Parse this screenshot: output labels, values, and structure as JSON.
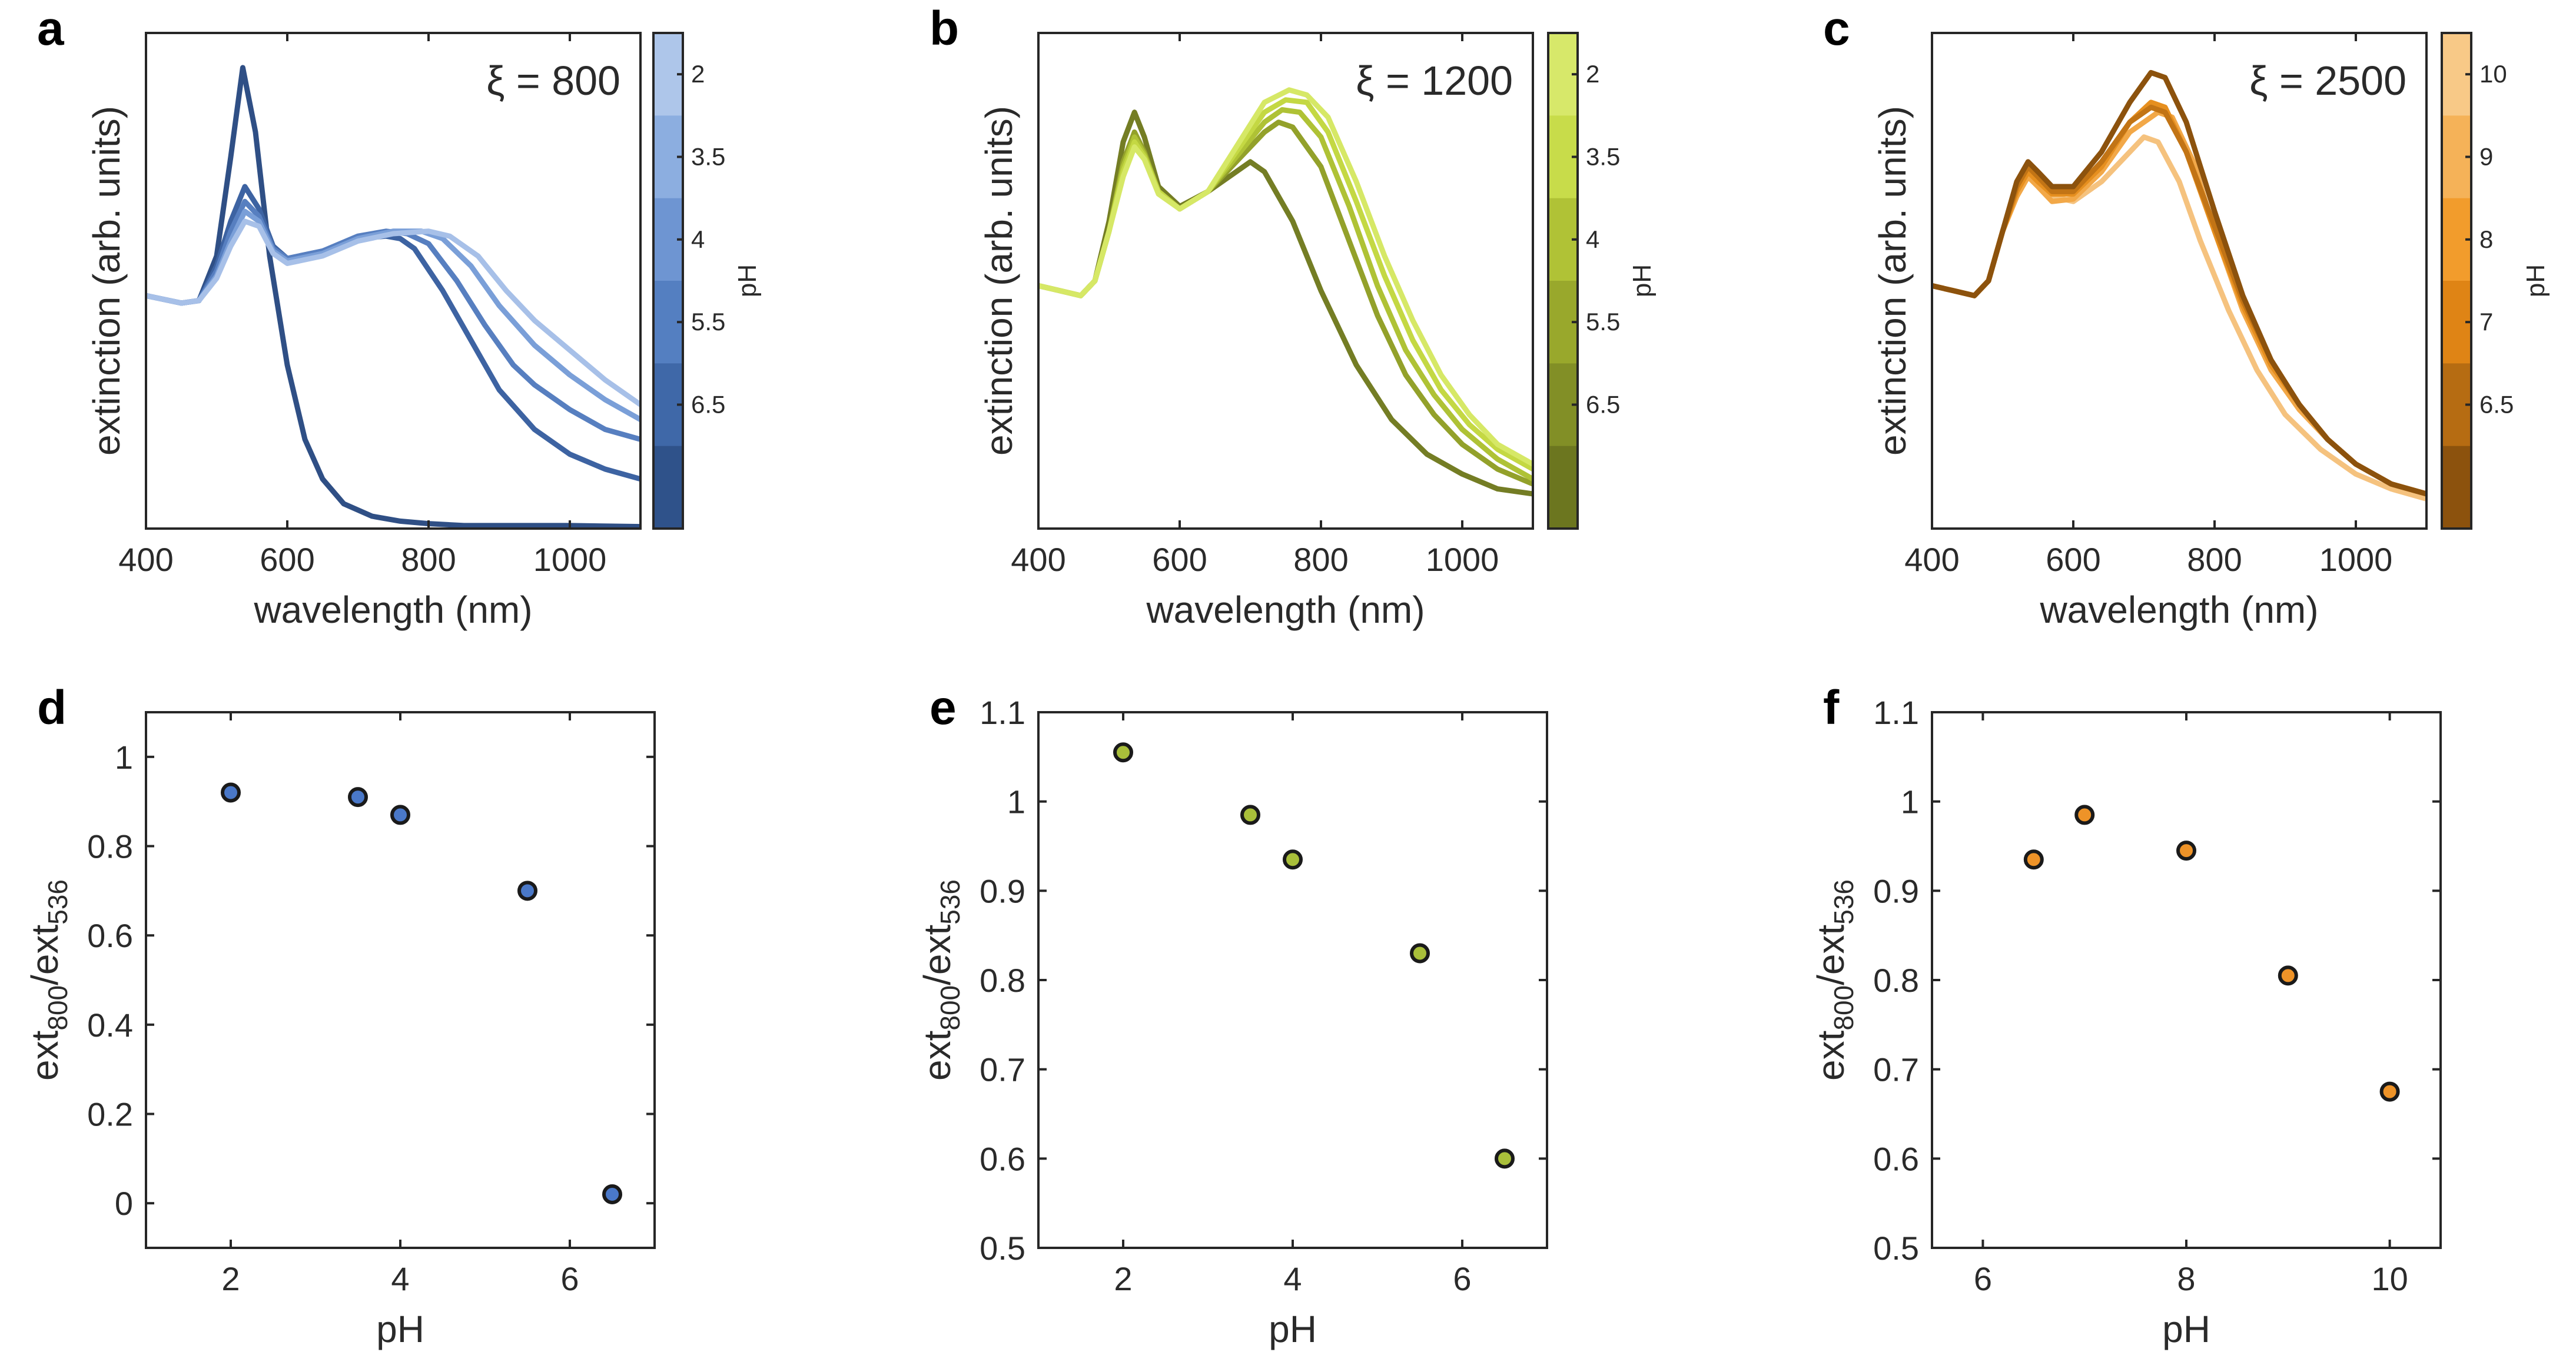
{
  "chart_data": [
    {
      "id": "a",
      "type": "line",
      "letter": "a",
      "annotation": "ξ = 800",
      "xlabel": "wavelength (nm)",
      "ylabel": "extinction (arb. units)",
      "xlim": [
        400,
        1100
      ],
      "ylim": [
        0,
        1
      ],
      "xticks": [
        400,
        600,
        800,
        1000
      ],
      "yticks": [],
      "colorbar": {
        "title": "pH",
        "ticks": [
          "2",
          "3.5",
          "4",
          "5.5",
          "6.5"
        ],
        "colors": [
          "#aec6ea",
          "#8caee0",
          "#6e95d2",
          "#547fc1",
          "#3f68a8",
          "#2f528a"
        ]
      },
      "series": [
        {
          "name": "6.5",
          "color": "#2f4f85",
          "x": [
            400,
            450,
            475,
            500,
            520,
            537,
            555,
            575,
            600,
            625,
            650,
            680,
            720,
            760,
            800,
            850,
            900,
            1000,
            1100
          ],
          "y": [
            0.47,
            0.455,
            0.46,
            0.55,
            0.75,
            0.93,
            0.8,
            0.55,
            0.33,
            0.18,
            0.1,
            0.05,
            0.025,
            0.015,
            0.01,
            0.006,
            0.006,
            0.006,
            0.004
          ]
        },
        {
          "name": "5.5",
          "color": "#3d63a2",
          "x": [
            400,
            450,
            475,
            500,
            520,
            540,
            560,
            580,
            600,
            650,
            700,
            740,
            760,
            780,
            820,
            860,
            900,
            950,
            1000,
            1050,
            1100
          ],
          "y": [
            0.47,
            0.455,
            0.46,
            0.53,
            0.62,
            0.69,
            0.645,
            0.57,
            0.545,
            0.56,
            0.585,
            0.59,
            0.585,
            0.565,
            0.48,
            0.38,
            0.28,
            0.2,
            0.15,
            0.12,
            0.1
          ]
        },
        {
          "name": "4",
          "color": "#577fc0",
          "x": [
            400,
            450,
            475,
            500,
            520,
            540,
            560,
            580,
            600,
            650,
            700,
            740,
            770,
            800,
            840,
            880,
            920,
            950,
            1000,
            1050,
            1100
          ],
          "y": [
            0.47,
            0.455,
            0.46,
            0.52,
            0.6,
            0.66,
            0.63,
            0.565,
            0.545,
            0.56,
            0.59,
            0.6,
            0.595,
            0.575,
            0.5,
            0.41,
            0.33,
            0.29,
            0.24,
            0.2,
            0.18
          ]
        },
        {
          "name": "3.5",
          "color": "#7a9fd8",
          "x": [
            400,
            450,
            475,
            500,
            520,
            540,
            560,
            580,
            600,
            650,
            700,
            750,
            790,
            820,
            860,
            900,
            950,
            1000,
            1050,
            1100
          ],
          "y": [
            0.47,
            0.455,
            0.46,
            0.51,
            0.58,
            0.64,
            0.62,
            0.56,
            0.54,
            0.555,
            0.585,
            0.6,
            0.6,
            0.585,
            0.53,
            0.45,
            0.37,
            0.31,
            0.26,
            0.22
          ]
        },
        {
          "name": "2",
          "color": "#a7c0e8",
          "x": [
            400,
            450,
            475,
            500,
            520,
            540,
            560,
            580,
            600,
            650,
            700,
            750,
            800,
            830,
            870,
            910,
            950,
            1000,
            1050,
            1100
          ],
          "y": [
            0.47,
            0.455,
            0.46,
            0.505,
            0.57,
            0.62,
            0.61,
            0.555,
            0.535,
            0.55,
            0.58,
            0.595,
            0.6,
            0.59,
            0.55,
            0.48,
            0.42,
            0.36,
            0.3,
            0.25
          ]
        }
      ]
    },
    {
      "id": "b",
      "type": "line",
      "letter": "b",
      "annotation": "ξ = 1200",
      "xlabel": "wavelength (nm)",
      "ylabel": "extinction (arb. units)",
      "xlim": [
        400,
        1100
      ],
      "ylim": [
        0,
        1
      ],
      "xticks": [
        400,
        600,
        800,
        1000
      ],
      "yticks": [],
      "colorbar": {
        "title": "pH",
        "ticks": [
          "2",
          "3.5",
          "4",
          "5.5",
          "6.5"
        ],
        "colors": [
          "#d7e86a",
          "#c8dc4a",
          "#b0c236",
          "#99a82c",
          "#828f26",
          "#6c761f"
        ]
      },
      "series": [
        {
          "name": "6.5",
          "color": "#747d24",
          "x": [
            400,
            430,
            460,
            480,
            500,
            520,
            536,
            550,
            570,
            600,
            640,
            680,
            700,
            720,
            760,
            800,
            850,
            900,
            950,
            1000,
            1050,
            1100
          ],
          "y": [
            0.49,
            0.48,
            0.47,
            0.5,
            0.62,
            0.78,
            0.84,
            0.79,
            0.69,
            0.65,
            0.68,
            0.72,
            0.74,
            0.72,
            0.62,
            0.48,
            0.33,
            0.22,
            0.15,
            0.11,
            0.08,
            0.07
          ]
        },
        {
          "name": "5.5",
          "color": "#93a12a",
          "x": [
            400,
            430,
            460,
            480,
            500,
            520,
            536,
            550,
            570,
            600,
            640,
            680,
            720,
            740,
            760,
            800,
            840,
            880,
            920,
            960,
            1000,
            1050,
            1100
          ],
          "y": [
            0.49,
            0.48,
            0.47,
            0.5,
            0.6,
            0.74,
            0.8,
            0.76,
            0.68,
            0.645,
            0.68,
            0.74,
            0.8,
            0.82,
            0.81,
            0.73,
            0.58,
            0.43,
            0.31,
            0.23,
            0.17,
            0.12,
            0.09
          ]
        },
        {
          "name": "4",
          "color": "#afc235",
          "x": [
            400,
            430,
            460,
            480,
            500,
            520,
            536,
            550,
            570,
            600,
            640,
            680,
            720,
            745,
            770,
            800,
            840,
            880,
            920,
            960,
            1000,
            1050,
            1100
          ],
          "y": [
            0.49,
            0.48,
            0.47,
            0.5,
            0.6,
            0.73,
            0.79,
            0.755,
            0.68,
            0.645,
            0.68,
            0.75,
            0.82,
            0.845,
            0.84,
            0.79,
            0.65,
            0.49,
            0.36,
            0.27,
            0.2,
            0.14,
            0.1
          ]
        },
        {
          "name": "3.5",
          "color": "#c4d843",
          "x": [
            400,
            430,
            460,
            480,
            500,
            520,
            536,
            550,
            570,
            600,
            640,
            680,
            720,
            750,
            780,
            810,
            850,
            890,
            930,
            970,
            1010,
            1050,
            1100
          ],
          "y": [
            0.49,
            0.48,
            0.47,
            0.5,
            0.6,
            0.72,
            0.78,
            0.75,
            0.68,
            0.645,
            0.68,
            0.76,
            0.84,
            0.865,
            0.86,
            0.8,
            0.66,
            0.51,
            0.38,
            0.28,
            0.21,
            0.16,
            0.12
          ]
        },
        {
          "name": "2",
          "color": "#d6e866",
          "x": [
            400,
            430,
            460,
            480,
            500,
            520,
            536,
            550,
            570,
            600,
            640,
            680,
            720,
            755,
            780,
            810,
            850,
            890,
            930,
            970,
            1010,
            1050,
            1100
          ],
          "y": [
            0.49,
            0.48,
            0.47,
            0.5,
            0.6,
            0.71,
            0.77,
            0.745,
            0.675,
            0.645,
            0.68,
            0.77,
            0.86,
            0.885,
            0.875,
            0.83,
            0.7,
            0.55,
            0.42,
            0.31,
            0.23,
            0.17,
            0.13
          ]
        }
      ]
    },
    {
      "id": "c",
      "type": "line",
      "letter": "c",
      "annotation": "ξ = 2500",
      "xlabel": "wavelength (nm)",
      "ylabel": "extinction (arb. units)",
      "xlim": [
        400,
        1100
      ],
      "ylim": [
        0,
        1
      ],
      "xticks": [
        400,
        600,
        800,
        1000
      ],
      "yticks": [],
      "colorbar": {
        "title": "pH",
        "ticks": [
          "10",
          "9",
          "8",
          "7",
          "6.5"
        ],
        "colors": [
          "#f8c987",
          "#f5b258",
          "#f29c2c",
          "#df8415",
          "#b66c12",
          "#8c520d"
        ]
      },
      "series": [
        {
          "name": "10",
          "color": "#f5c27e",
          "x": [
            400,
            430,
            460,
            480,
            500,
            520,
            536,
            550,
            570,
            600,
            640,
            680,
            700,
            720,
            750,
            780,
            820,
            860,
            900,
            950,
            1000,
            1050,
            1100
          ],
          "y": [
            0.49,
            0.48,
            0.47,
            0.5,
            0.6,
            0.68,
            0.72,
            0.7,
            0.67,
            0.66,
            0.7,
            0.76,
            0.79,
            0.78,
            0.7,
            0.58,
            0.44,
            0.32,
            0.23,
            0.16,
            0.11,
            0.08,
            0.06
          ]
        },
        {
          "name": "9",
          "color": "#f2a848",
          "x": [
            400,
            430,
            460,
            480,
            500,
            520,
            536,
            550,
            570,
            600,
            640,
            680,
            720,
            740,
            770,
            800,
            840,
            880,
            920,
            960,
            1000,
            1050,
            1100
          ],
          "y": [
            0.49,
            0.48,
            0.47,
            0.5,
            0.6,
            0.67,
            0.71,
            0.69,
            0.66,
            0.665,
            0.72,
            0.8,
            0.84,
            0.83,
            0.74,
            0.6,
            0.44,
            0.32,
            0.24,
            0.18,
            0.13,
            0.09,
            0.07
          ]
        },
        {
          "name": "8",
          "color": "#e68f1f",
          "x": [
            400,
            430,
            460,
            480,
            500,
            520,
            536,
            550,
            570,
            600,
            640,
            680,
            710,
            730,
            760,
            800,
            840,
            880,
            920,
            960,
            1000,
            1050,
            1100
          ],
          "y": [
            0.49,
            0.48,
            0.47,
            0.5,
            0.6,
            0.68,
            0.72,
            0.7,
            0.675,
            0.675,
            0.73,
            0.82,
            0.86,
            0.85,
            0.76,
            0.6,
            0.45,
            0.33,
            0.25,
            0.18,
            0.13,
            0.09,
            0.07
          ]
        },
        {
          "name": "7",
          "color": "#c27415",
          "x": [
            400,
            430,
            460,
            480,
            500,
            520,
            536,
            550,
            570,
            600,
            640,
            680,
            710,
            730,
            760,
            800,
            840,
            880,
            920,
            960,
            1000,
            1050,
            1100
          ],
          "y": [
            0.49,
            0.48,
            0.47,
            0.5,
            0.6,
            0.69,
            0.73,
            0.71,
            0.68,
            0.68,
            0.74,
            0.82,
            0.85,
            0.84,
            0.76,
            0.61,
            0.46,
            0.34,
            0.25,
            0.18,
            0.13,
            0.09,
            0.07
          ]
        },
        {
          "name": "6.5",
          "color": "#8c520d",
          "x": [
            400,
            430,
            460,
            480,
            500,
            520,
            536,
            550,
            570,
            600,
            640,
            680,
            710,
            730,
            760,
            800,
            840,
            880,
            920,
            960,
            1000,
            1050,
            1100
          ],
          "y": [
            0.49,
            0.48,
            0.47,
            0.5,
            0.6,
            0.7,
            0.74,
            0.72,
            0.69,
            0.69,
            0.76,
            0.86,
            0.92,
            0.91,
            0.82,
            0.64,
            0.47,
            0.34,
            0.25,
            0.18,
            0.13,
            0.09,
            0.07
          ]
        }
      ]
    },
    {
      "id": "d",
      "type": "scatter",
      "letter": "d",
      "xlabel": "pH",
      "ylabel_base": "ext",
      "ylabel_sub1": "800",
      "ylabel_mid": "/ext",
      "ylabel_sub2": "536",
      "xlim": [
        1,
        7
      ],
      "ylim": [
        -0.1,
        1.1
      ],
      "xticks": [
        2,
        4,
        6
      ],
      "xtick_labels": [
        "2",
        "4",
        "6"
      ],
      "yticks": [
        0,
        0.2,
        0.4,
        0.6,
        0.8,
        1
      ],
      "ytick_labels": [
        "0",
        "0.2",
        "0.4",
        "0.6",
        "0.8",
        "1"
      ],
      "marker_color": "#4a78c8",
      "x": [
        2,
        3.5,
        4,
        5.5,
        6.5
      ],
      "y": [
        0.92,
        0.91,
        0.87,
        0.7,
        0.02
      ]
    },
    {
      "id": "e",
      "type": "scatter",
      "letter": "e",
      "xlabel": "pH",
      "ylabel_base": "ext",
      "ylabel_sub1": "800",
      "ylabel_mid": "/ext",
      "ylabel_sub2": "536",
      "xlim": [
        1,
        7
      ],
      "ylim": [
        0.5,
        1.1
      ],
      "xticks": [
        2,
        4,
        6
      ],
      "xtick_labels": [
        "2",
        "4",
        "6"
      ],
      "yticks": [
        0.5,
        0.6,
        0.7,
        0.8,
        0.9,
        1,
        1.1
      ],
      "ytick_labels": [
        "0.5",
        "0.6",
        "0.7",
        "0.8",
        "0.9",
        "1",
        "1.1"
      ],
      "marker_color": "#a9bf3a",
      "x": [
        2,
        3.5,
        4,
        5.5,
        6.5
      ],
      "y": [
        1.055,
        0.985,
        0.935,
        0.83,
        0.6
      ]
    },
    {
      "id": "f",
      "type": "scatter",
      "letter": "f",
      "xlabel": "pH",
      "ylabel_base": "ext",
      "ylabel_sub1": "800",
      "ylabel_mid": "/ext",
      "ylabel_sub2": "536",
      "xlim": [
        5.5,
        10.5
      ],
      "ylim": [
        0.5,
        1.1
      ],
      "xticks": [
        6,
        8,
        10
      ],
      "xtick_labels": [
        "6",
        "8",
        "10"
      ],
      "yticks": [
        0.5,
        0.6,
        0.7,
        0.8,
        0.9,
        1,
        1.1
      ],
      "ytick_labels": [
        "0.5",
        "0.6",
        "0.7",
        "0.8",
        "0.9",
        "1",
        "1.1"
      ],
      "marker_color": "#ee9328",
      "x": [
        6.5,
        7,
        8,
        9,
        10
      ],
      "y": [
        0.935,
        0.985,
        0.945,
        0.805,
        0.675
      ]
    }
  ]
}
